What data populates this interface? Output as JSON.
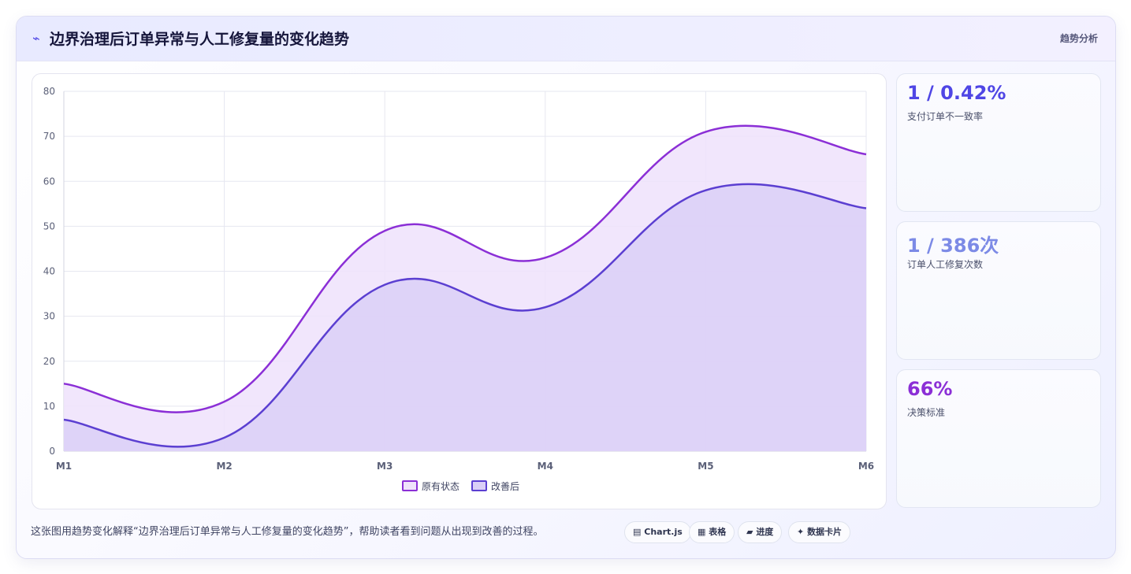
{
  "header": {
    "icon": "⌁",
    "title": "边界治理后订单异常与人工修复量的变化趋势",
    "tag": "趋势分析"
  },
  "chart_data": {
    "type": "area",
    "x": [
      "M1",
      "M2",
      "M3",
      "M4",
      "M5",
      "M6"
    ],
    "ylim": [
      0,
      80
    ],
    "yticks": [
      0,
      10,
      20,
      30,
      40,
      50,
      60,
      70,
      80
    ],
    "grid": true,
    "legend_position": "bottom",
    "series": [
      {
        "name": "原有状态",
        "values": [
          15,
          11,
          49,
          43,
          71,
          66
        ],
        "color": "#8b2fd6",
        "fill": "#efe2fb"
      },
      {
        "name": "改善后",
        "values": [
          7,
          3,
          37,
          32,
          58,
          54
        ],
        "color": "#5b3fd1",
        "fill": "#dacff7"
      }
    ]
  },
  "kpis": [
    {
      "value": "1 / 0.42%",
      "label": "支付订单不一致率",
      "color": "#4f46e5"
    },
    {
      "value": "1 / 386次",
      "label": "订单人工修复次数",
      "color": "#7c8ae6"
    },
    {
      "value": "66%",
      "label": "决策标准",
      "color": "#8b2fd6"
    }
  ],
  "footer": {
    "text": "这张图用趋势变化解释“边界治理后订单异常与人工修复量的变化趋势”，帮助读者看到问题从出现到改善的过程。",
    "chips": [
      {
        "icon": "▤",
        "label": "Chart.js"
      },
      {
        "icon": "▦",
        "label": "表格"
      },
      {
        "icon": "▰",
        "label": "进度"
      },
      {
        "icon": "✦",
        "label": "数据卡片"
      }
    ]
  }
}
